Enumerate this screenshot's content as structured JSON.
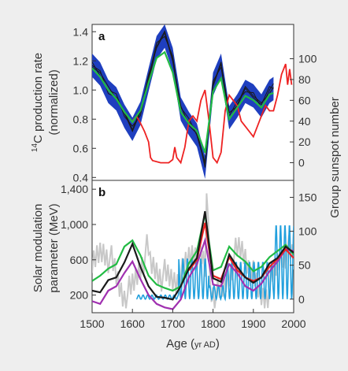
{
  "colors": {
    "background": "#eeeeee",
    "panel": "#ffffff",
    "black": "#1a1a1a",
    "green": "#22bb44",
    "red": "#ee2222",
    "blue_band": "#1f3fbf",
    "purple": "#a030b0",
    "cyan": "#22a0dd",
    "grey": "#c8c8c8"
  },
  "xaxis": {
    "label_main": "Age (",
    "label_unit": "yr AD",
    "label_close": ")",
    "ticks": [
      "1500",
      "1600",
      "1700",
      "1800",
      "1900",
      "2000"
    ]
  },
  "chart_data": [
    {
      "type": "line",
      "panel_label": "a",
      "xlim": [
        1500,
        2000
      ],
      "ylabel": "14C production rate (normalized)",
      "ylabel_sup": "14",
      "ylabel_line1_rest": "C production rate",
      "ylabel_line2": "(normalized)",
      "ylim": [
        1.45,
        0.38
      ],
      "yticks": [
        "0.4",
        "0.6",
        "0.8",
        "1.0",
        "1.2",
        "1.4"
      ],
      "y2label": "Group sunspot number",
      "y2lim": [
        -17,
        133
      ],
      "y2ticks": [
        "0",
        "20",
        "40",
        "60",
        "80",
        "100"
      ],
      "x": [
        1500,
        1520,
        1540,
        1560,
        1580,
        1600,
        1620,
        1640,
        1660,
        1680,
        1700,
        1720,
        1740,
        1760,
        1780,
        1800,
        1820,
        1840,
        1860,
        1880,
        1900,
        1920,
        1940,
        1950
      ],
      "series": [
        {
          "color_key": "black",
          "axis": "left",
          "y": [
            1.18,
            1.12,
            1.0,
            0.95,
            0.83,
            0.74,
            0.85,
            1.08,
            1.3,
            1.38,
            1.22,
            0.88,
            0.78,
            0.7,
            0.48,
            1.05,
            1.18,
            0.82,
            0.9,
            1.0,
            0.97,
            0.9,
            1.0,
            1.02
          ]
        },
        {
          "color_key": "green",
          "axis": "left",
          "y": [
            1.15,
            1.09,
            1.0,
            0.94,
            0.85,
            0.78,
            0.86,
            1.05,
            1.22,
            1.26,
            1.12,
            0.85,
            0.77,
            0.72,
            0.57,
            0.99,
            1.08,
            0.8,
            0.88,
            0.96,
            0.93,
            0.88,
            0.97,
            0.98
          ]
        },
        {
          "color_key": "red",
          "axis": "right",
          "x": [
            1600,
            1610,
            1620,
            1630,
            1640,
            1645,
            1650,
            1670,
            1690,
            1700,
            1705,
            1710,
            1720,
            1730,
            1740,
            1750,
            1760,
            1770,
            1780,
            1790,
            1800,
            1810,
            1820,
            1830,
            1840,
            1850,
            1860,
            1870,
            1880,
            1890,
            1900,
            1910,
            1920,
            1930,
            1940,
            1950,
            1960,
            1970,
            1975,
            1980,
            1985,
            1990,
            1995
          ],
          "y": [
            40,
            45,
            38,
            30,
            20,
            5,
            2,
            0,
            0,
            3,
            15,
            5,
            0,
            15,
            40,
            45,
            40,
            60,
            70,
            40,
            5,
            0,
            10,
            50,
            65,
            60,
            55,
            40,
            35,
            30,
            25,
            35,
            45,
            55,
            50,
            50,
            65,
            85,
            90,
            95,
            75,
            90,
            75
          ]
        }
      ]
    },
    {
      "type": "line",
      "panel_label": "b",
      "xlim": [
        1500,
        2000
      ],
      "ylabel": "Solar modulation parameter (MeV)",
      "ylabel_line1": "Solar modulation",
      "ylabel_line2": "parameter (MeV)",
      "ylim": [
        0,
        1500
      ],
      "yticks": [
        "200",
        "600",
        "1,000",
        "1,400"
      ],
      "ytick_values": [
        200,
        600,
        1000,
        1400
      ],
      "y2label": "Group sunspot number",
      "y2lim": [
        -20,
        175
      ],
      "y2ticks": [
        "0",
        "50",
        "100",
        "150"
      ],
      "y2tick_values": [
        0,
        50,
        100,
        150
      ],
      "x": [
        1500,
        1520,
        1540,
        1560,
        1580,
        1600,
        1620,
        1640,
        1660,
        1680,
        1700,
        1720,
        1740,
        1760,
        1780,
        1800,
        1820,
        1840,
        1860,
        1880,
        1900,
        1920,
        1940,
        1960,
        1980,
        2000
      ],
      "series": [
        {
          "color_key": "green",
          "y": [
            360,
            420,
            500,
            550,
            750,
            820,
            650,
            420,
            320,
            280,
            250,
            300,
            560,
            700,
            1120,
            480,
            520,
            750,
            650,
            580,
            470,
            520,
            630,
            700,
            770,
            660
          ]
        },
        {
          "color_key": "black",
          "y": [
            250,
            230,
            370,
            400,
            570,
            780,
            520,
            300,
            180,
            170,
            150,
            300,
            500,
            620,
            1150,
            390,
            350,
            660,
            520,
            400,
            340,
            400,
            560,
            620,
            750,
            680
          ]
        },
        {
          "color_key": "red",
          "y": [
            null,
            null,
            null,
            null,
            null,
            null,
            null,
            null,
            null,
            null,
            null,
            null,
            480,
            600,
            1020,
            420,
            380,
            630,
            480,
            400,
            360,
            400,
            520,
            610,
            720,
            620
          ]
        },
        {
          "color_key": "purple",
          "y": [
            130,
            100,
            250,
            300,
            450,
            580,
            380,
            200,
            100,
            60,
            40,
            150,
            400,
            550,
            820,
            320,
            300,
            550,
            450,
            300,
            250,
            330,
            470,
            580,
            720,
            700
          ]
        }
      ]
    }
  ]
}
